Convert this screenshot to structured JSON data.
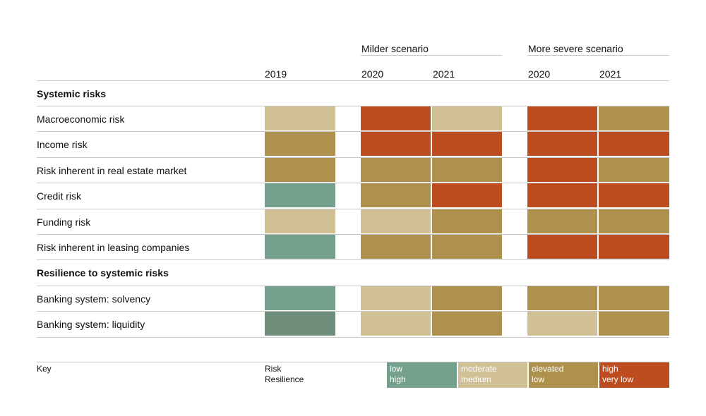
{
  "scenarios": [
    "Milder scenario",
    "More severe scenario"
  ],
  "columns": [
    "2019",
    "2020",
    "2021",
    "2020",
    "2021"
  ],
  "colors": {
    "green": "#75a08d",
    "green_dark": "#6f8f7c",
    "beige": "#d1c096",
    "ochre": "#ae914d",
    "red": "#bd4c20"
  },
  "sections": [
    {
      "title": "Systemic risks",
      "rows": [
        {
          "label": "Macroeconomic risk",
          "cells": [
            "beige",
            "red",
            "beige",
            "red",
            "ochre"
          ]
        },
        {
          "label": "Income risk",
          "cells": [
            "ochre",
            "red",
            "red",
            "red",
            "red"
          ]
        },
        {
          "label": "Risk inherent in real estate market",
          "cells": [
            "ochre",
            "ochre",
            "ochre",
            "red",
            "ochre"
          ]
        },
        {
          "label": "Credit risk",
          "cells": [
            "green",
            "ochre",
            "red",
            "red",
            "red"
          ]
        },
        {
          "label": "Funding risk",
          "cells": [
            "beige",
            "beige",
            "ochre",
            "ochre",
            "ochre"
          ]
        },
        {
          "label": "Risk inherent in leasing companies",
          "cells": [
            "green",
            "ochre",
            "ochre",
            "red",
            "red"
          ]
        }
      ]
    },
    {
      "title": "Resilience to systemic risks",
      "rows": [
        {
          "label": "Banking system: solvency",
          "cells": [
            "green",
            "beige",
            "ochre",
            "ochre",
            "ochre"
          ]
        },
        {
          "label": "Banking system: liquidity",
          "cells": [
            "green_dark",
            "beige",
            "ochre",
            "beige",
            "ochre"
          ]
        }
      ]
    }
  ],
  "key": {
    "title": "Key",
    "labels": [
      "Risk",
      "Resilience"
    ],
    "items": [
      {
        "color": "green",
        "risk": "low",
        "resilience": "high"
      },
      {
        "color": "beige",
        "risk": "moderate",
        "resilience": "medium"
      },
      {
        "color": "ochre",
        "risk": "elevated",
        "resilience": "low"
      },
      {
        "color": "red",
        "risk": "high",
        "resilience": "very low"
      }
    ]
  },
  "chart_data": {
    "type": "heatmap",
    "column_groups": [
      {
        "name": "",
        "columns": [
          "2019"
        ]
      },
      {
        "name": "Milder scenario",
        "columns": [
          "2020",
          "2021"
        ]
      },
      {
        "name": "More severe scenario",
        "columns": [
          "2020",
          "2021"
        ]
      }
    ],
    "levels": {
      "risk": [
        "low",
        "moderate",
        "elevated",
        "high"
      ],
      "resilience": [
        "high",
        "medium",
        "low",
        "very low"
      ]
    },
    "rows": [
      {
        "section": "Systemic risks",
        "label": "Macroeconomic risk",
        "levels": [
          "moderate",
          "high",
          "moderate",
          "high",
          "elevated"
        ]
      },
      {
        "section": "Systemic risks",
        "label": "Income risk",
        "levels": [
          "elevated",
          "high",
          "high",
          "high",
          "high"
        ]
      },
      {
        "section": "Systemic risks",
        "label": "Risk inherent in real estate market",
        "levels": [
          "elevated",
          "elevated",
          "elevated",
          "high",
          "elevated"
        ]
      },
      {
        "section": "Systemic risks",
        "label": "Credit risk",
        "levels": [
          "low",
          "elevated",
          "high",
          "high",
          "high"
        ]
      },
      {
        "section": "Systemic risks",
        "label": "Funding risk",
        "levels": [
          "moderate",
          "moderate",
          "elevated",
          "elevated",
          "elevated"
        ]
      },
      {
        "section": "Systemic risks",
        "label": "Risk inherent in leasing companies",
        "levels": [
          "low",
          "elevated",
          "elevated",
          "high",
          "high"
        ]
      },
      {
        "section": "Resilience to systemic risks",
        "label": "Banking system: solvency",
        "levels": [
          "high",
          "medium",
          "low",
          "low",
          "low"
        ]
      },
      {
        "section": "Resilience to systemic risks",
        "label": "Banking system: liquidity",
        "levels": [
          "high",
          "medium",
          "low",
          "medium",
          "low"
        ]
      }
    ]
  }
}
